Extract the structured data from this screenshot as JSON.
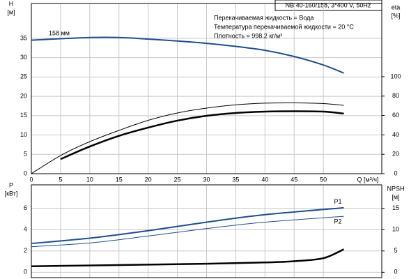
{
  "chart_data": [
    {
      "type": "line",
      "title": "NB 40-160/158, 3*400 V, 50Hz",
      "notes": [
        "Перекачиваемая жидкость = Вода",
        "Температура перекачиваемой жидкости = 20 °C",
        "Плотность = 998.2 кг/м³"
      ],
      "annotation": "158 мм",
      "x_label": "Q [м³/ч]",
      "y_label": [
        "H",
        "[м]"
      ],
      "y2_label": [
        "eta",
        "[%]"
      ],
      "xlim": [
        0,
        60
      ],
      "xticks": [
        0,
        5,
        10,
        15,
        20,
        25,
        30,
        35,
        40,
        45,
        50
      ],
      "ylim": [
        0,
        44
      ],
      "yticks": [
        0,
        5,
        10,
        15,
        20,
        25,
        30,
        35
      ],
      "y2lim": [
        0,
        175.5
      ],
      "y2ticks": [
        0,
        20,
        40,
        60,
        80,
        100
      ],
      "grid": true,
      "series": [
        {
          "color": "#1f4e8c",
          "width": 2,
          "x": [
            0,
            5,
            10,
            15,
            20,
            25,
            30,
            35,
            40,
            45,
            50,
            53.5
          ],
          "values": [
            34.5,
            34.9,
            35.2,
            35.2,
            34.8,
            34.3,
            33.7,
            32.9,
            31.9,
            30.3,
            28.1,
            26
          ]
        },
        {
          "color": "#000000",
          "width": 1,
          "axis": "y2",
          "x": [
            0,
            5,
            10,
            15,
            20,
            25,
            30,
            35,
            40,
            45,
            50,
            53.5
          ],
          "values": [
            0,
            18.7,
            33,
            44.6,
            55,
            62.6,
            67.6,
            71,
            72.7,
            73,
            72.3,
            70.5
          ]
        },
        {
          "color": "#000000",
          "width": 2.5,
          "axis": "y2",
          "x": [
            5,
            10,
            15,
            20,
            25,
            30,
            35,
            40,
            45,
            50,
            53.5
          ],
          "values": [
            15,
            28,
            39,
            47.5,
            54.7,
            59.7,
            62.6,
            64,
            64.4,
            64,
            62
          ]
        }
      ]
    },
    {
      "type": "line",
      "y_label": [
        "P",
        "[кВт]"
      ],
      "y2_label": [
        "NPSH",
        "[м]"
      ],
      "xlim": [
        0,
        60
      ],
      "xticks": [
        0,
        5,
        10,
        15,
        20,
        25,
        30,
        35,
        40,
        45,
        50
      ],
      "ylim": [
        -0.5,
        8.2
      ],
      "yticks": [
        0,
        2,
        4,
        6
      ],
      "y2lim": [
        -1.25,
        20.5
      ],
      "y2ticks": [
        0,
        5,
        10,
        15
      ],
      "grid": true,
      "series": [
        {
          "name": "P1",
          "color": "#1f4e8c",
          "width": 2,
          "x": [
            0,
            10,
            20,
            30,
            40,
            53.5
          ],
          "values": [
            2.7,
            3.2,
            3.9,
            4.7,
            5.4,
            6.05
          ]
        },
        {
          "name": "P2",
          "color": "#1f4e8c",
          "width": 1,
          "x": [
            0,
            10,
            20,
            30,
            40,
            53.5
          ],
          "values": [
            2.4,
            2.75,
            3.4,
            4.1,
            4.7,
            5.25
          ]
        },
        {
          "color": "#000000",
          "width": 2.5,
          "axis": "y2",
          "x": [
            0,
            5,
            20,
            30,
            40,
            45,
            50,
            53.5
          ],
          "values": [
            1.4,
            1.5,
            1.8,
            2.0,
            2.3,
            2.6,
            3.3,
            5.4
          ]
        }
      ]
    }
  ]
}
